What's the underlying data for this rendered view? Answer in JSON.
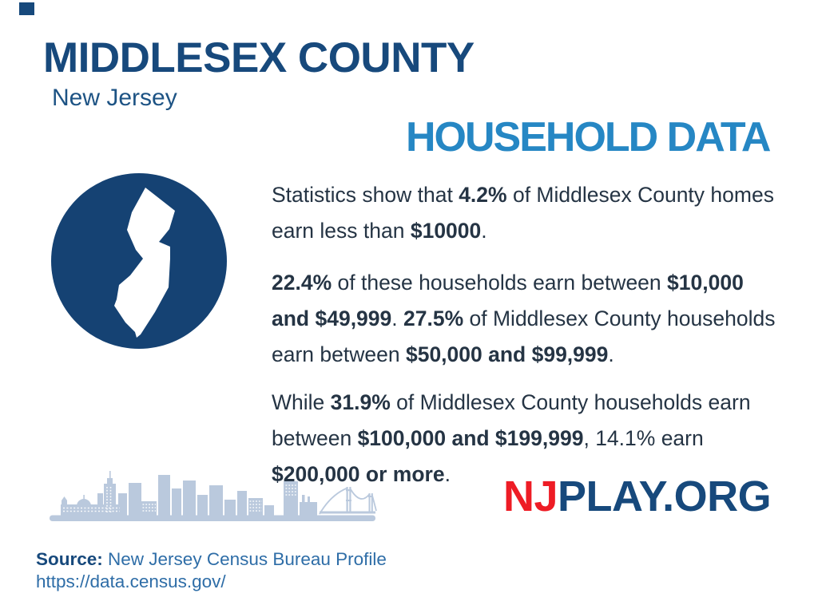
{
  "header": {
    "title": "MIDDLESEX COUNTY",
    "subtitle": "New Jersey",
    "section_title": "HOUSEHOLD DATA"
  },
  "body": {
    "paragraphs": [
      [
        [
          {
            "t": "Statistics show that "
          },
          {
            "t": "4.2%",
            "b": true
          },
          {
            "t": " of Middlesex County homes"
          }
        ],
        [
          {
            "t": "earn less than "
          },
          {
            "t": "$10000",
            "b": true
          },
          {
            "t": "."
          }
        ]
      ],
      [
        [
          {
            "t": "22.4%",
            "b": true
          },
          {
            "t": " of these households earn between "
          },
          {
            "t": "$10,000",
            "b": true
          }
        ],
        [
          {
            "t": "and $49,999",
            "b": true
          },
          {
            "t": ". "
          },
          {
            "t": "27.5%",
            "b": true
          },
          {
            "t": " of Middlesex County households"
          }
        ],
        [
          {
            "t": "earn between "
          },
          {
            "t": "$50,000 and $99,999",
            "b": true
          },
          {
            "t": "."
          }
        ]
      ],
      [
        [
          {
            "t": "While "
          },
          {
            "t": "31.9%",
            "b": true
          },
          {
            "t": " of Middlesex County households earn"
          }
        ],
        [
          {
            "t": "between "
          },
          {
            "t": "$100,000 and $199,999",
            "b": true
          },
          {
            "t": ", 14.1% earn"
          }
        ],
        [
          {
            "t": "$200,000 or more",
            "b": true
          },
          {
            "t": "."
          }
        ]
      ]
    ]
  },
  "statistics": {
    "less_than_10000_pct": "4.2%",
    "10000_to_49999_pct": "22.4%",
    "50000_to_99999_pct": "27.5%",
    "100000_to_199999_pct": "31.9%",
    "200000_or_more_pct": "14.1%"
  },
  "logo": {
    "prefix": "NJ",
    "suffix": "PLAY.ORG"
  },
  "source": {
    "label": "Source:",
    "text": " New Jersey Census Bureau Profile",
    "url": "https://data.census.gov/"
  },
  "icons": {
    "badge": "new-jersey-state-map",
    "footer": "city-skyline-with-bridge"
  },
  "colors": {
    "navy": "#17497c",
    "steel": "#1d5384",
    "light_blue": "#2687c4",
    "body_text": "#253444",
    "red": "#ee1c25",
    "skyline": "#bac9dd",
    "source_blue": "#2e6da7",
    "map_circle": "#154273"
  }
}
